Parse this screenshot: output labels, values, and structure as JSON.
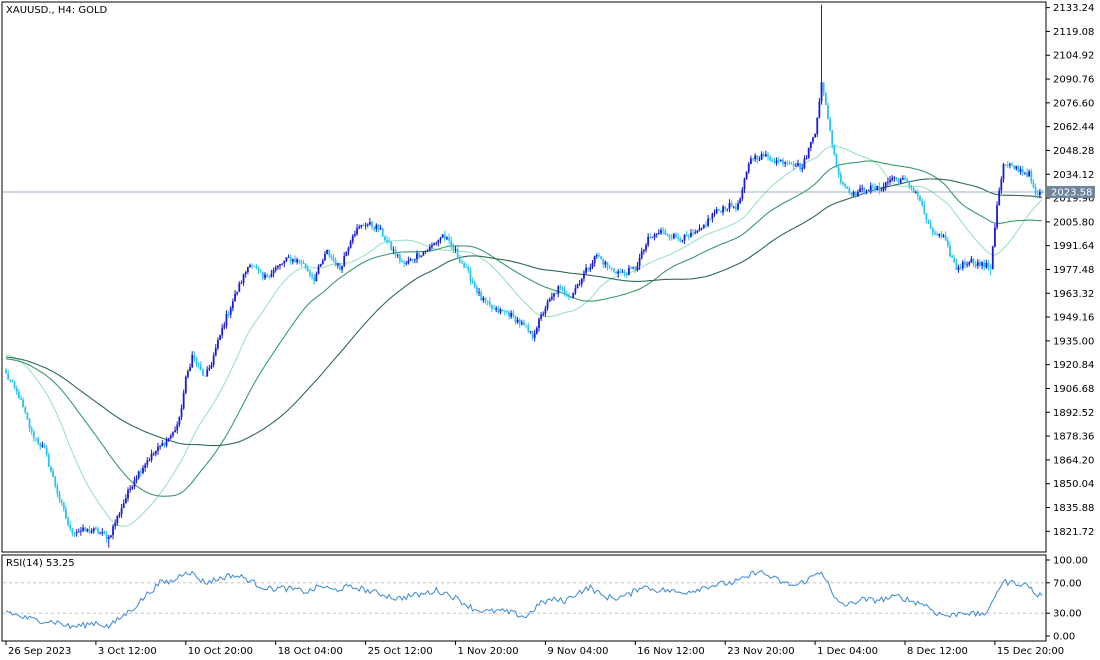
{
  "header": {
    "symbol_label": "XAUUSD., H4:  GOLD"
  },
  "rsi_panel": {
    "label": "RSI(14) 53.25"
  },
  "colors": {
    "bull": "#1a1ad6",
    "bear": "#27c3f5",
    "ma_fast": "#9be3c2",
    "ma_mid": "#3a9a6a",
    "ma_slow": "#2f6b4c",
    "rsi_line": "#3b88d8",
    "current_price_line": "#7e97b3",
    "current_price_box": "#6f859f"
  },
  "chart_data": [
    {
      "type": "candlestick",
      "title": "XAUUSD., H4:  GOLD",
      "ylim": [
        1810.0,
        2136.0
      ],
      "y_ticks": [
        "2133.24",
        "2119.08",
        "2104.92",
        "2090.76",
        "2076.60",
        "2062.44",
        "2048.28",
        "2034.12",
        "2019.96",
        "2005.80",
        "1991.64",
        "1977.48",
        "1963.32",
        "1949.16",
        "1935.00",
        "1920.84",
        "1906.68",
        "1892.52",
        "1878.36",
        "1864.20",
        "1850.04",
        "1835.88",
        "1821.72"
      ],
      "x_labels": [
        "26 Sep 2023",
        "3 Oct 12:00",
        "10 Oct 20:00",
        "18 Oct 04:00",
        "25 Oct 12:00",
        "1 Nov 20:00",
        "9 Nov 04:00",
        "16 Nov 12:00",
        "23 Nov 20:00",
        "1 Dec 04:00",
        "8 Dec 12:00",
        "15 Dec 20:00"
      ],
      "current_price": "2023.58",
      "keypoints": [
        [
          0,
          1915
        ],
        [
          6,
          1902
        ],
        [
          12,
          1880
        ],
        [
          18,
          1870
        ],
        [
          24,
          1845
        ],
        [
          30,
          1822
        ],
        [
          36,
          1822
        ],
        [
          42,
          1822
        ],
        [
          48,
          1818
        ],
        [
          54,
          1836
        ],
        [
          60,
          1853
        ],
        [
          66,
          1864
        ],
        [
          72,
          1872
        ],
        [
          78,
          1880
        ],
        [
          81,
          1888
        ],
        [
          84,
          1912
        ],
        [
          87,
          1926
        ],
        [
          93,
          1913
        ],
        [
          96,
          1922
        ],
        [
          102,
          1946
        ],
        [
          108,
          1965
        ],
        [
          114,
          1982
        ],
        [
          120,
          1972
        ],
        [
          126,
          1978
        ],
        [
          132,
          1984
        ],
        [
          138,
          1982
        ],
        [
          144,
          1972
        ],
        [
          150,
          1988
        ],
        [
          156,
          1978
        ],
        [
          162,
          1999
        ],
        [
          168,
          2005
        ],
        [
          174,
          2002
        ],
        [
          180,
          1990
        ],
        [
          186,
          1980
        ],
        [
          192,
          1986
        ],
        [
          198,
          1990
        ],
        [
          204,
          1998
        ],
        [
          210,
          1988
        ],
        [
          216,
          1975
        ],
        [
          222,
          1960
        ],
        [
          228,
          1953
        ],
        [
          234,
          1952
        ],
        [
          240,
          1946
        ],
        [
          246,
          1938
        ],
        [
          252,
          1955
        ],
        [
          258,
          1966
        ],
        [
          264,
          1962
        ],
        [
          270,
          1975
        ],
        [
          276,
          1986
        ],
        [
          282,
          1978
        ],
        [
          288,
          1975
        ],
        [
          294,
          1978
        ],
        [
          300,
          1995
        ],
        [
          306,
          2000
        ],
        [
          312,
          1997
        ],
        [
          318,
          1996
        ],
        [
          324,
          2000
        ],
        [
          330,
          2010
        ],
        [
          336,
          2015
        ],
        [
          342,
          2015
        ],
        [
          348,
          2044
        ],
        [
          354,
          2045
        ],
        [
          360,
          2042
        ],
        [
          366,
          2042
        ],
        [
          372,
          2038
        ],
        [
          378,
          2060
        ],
        [
          381,
          2088
        ],
        [
          384,
          2068
        ],
        [
          387,
          2045
        ],
        [
          390,
          2030
        ],
        [
          396,
          2022
        ],
        [
          402,
          2026
        ],
        [
          408,
          2025
        ],
        [
          414,
          2032
        ],
        [
          420,
          2030
        ],
        [
          426,
          2022
        ],
        [
          432,
          2000
        ],
        [
          438,
          1996
        ],
        [
          444,
          1978
        ],
        [
          450,
          1983
        ],
        [
          456,
          1980
        ],
        [
          460,
          1979
        ],
        [
          463,
          2016
        ],
        [
          466,
          2039
        ],
        [
          472,
          2038
        ],
        [
          478,
          2034
        ],
        [
          481,
          2021
        ],
        [
          484,
          2023.58
        ]
      ]
    },
    {
      "type": "line",
      "title": "RSI(14)",
      "ylim": [
        0,
        100
      ],
      "y_ticks": [
        "100.00",
        "70.00",
        "30.00",
        "0.00"
      ],
      "levels": [
        70,
        30
      ],
      "keypoints": [
        [
          0,
          33
        ],
        [
          6,
          26
        ],
        [
          12,
          22
        ],
        [
          18,
          20
        ],
        [
          24,
          18
        ],
        [
          30,
          12
        ],
        [
          36,
          14
        ],
        [
          42,
          18
        ],
        [
          48,
          12
        ],
        [
          54,
          25
        ],
        [
          60,
          38
        ],
        [
          66,
          55
        ],
        [
          72,
          70
        ],
        [
          78,
          72
        ],
        [
          81,
          79
        ],
        [
          84,
          86
        ],
        [
          87,
          82
        ],
        [
          93,
          70
        ],
        [
          99,
          75
        ],
        [
          105,
          80
        ],
        [
          111,
          77
        ],
        [
          117,
          68
        ],
        [
          123,
          62
        ],
        [
          129,
          63
        ],
        [
          135,
          61
        ],
        [
          141,
          58
        ],
        [
          147,
          66
        ],
        [
          153,
          60
        ],
        [
          159,
          64
        ],
        [
          165,
          63
        ],
        [
          171,
          58
        ],
        [
          177,
          54
        ],
        [
          183,
          49
        ],
        [
          189,
          53
        ],
        [
          195,
          55
        ],
        [
          201,
          60
        ],
        [
          207,
          55
        ],
        [
          213,
          45
        ],
        [
          219,
          35
        ],
        [
          225,
          32
        ],
        [
          231,
          33
        ],
        [
          237,
          30
        ],
        [
          243,
          25
        ],
        [
          249,
          42
        ],
        [
          255,
          48
        ],
        [
          261,
          46
        ],
        [
          267,
          57
        ],
        [
          273,
          64
        ],
        [
          279,
          52
        ],
        [
          285,
          50
        ],
        [
          291,
          54
        ],
        [
          297,
          66
        ],
        [
          303,
          61
        ],
        [
          309,
          60
        ],
        [
          315,
          57
        ],
        [
          321,
          60
        ],
        [
          327,
          65
        ],
        [
          333,
          68
        ],
        [
          339,
          70
        ],
        [
          345,
          75
        ],
        [
          351,
          86
        ],
        [
          357,
          78
        ],
        [
          363,
          70
        ],
        [
          369,
          66
        ],
        [
          375,
          75
        ],
        [
          381,
          86
        ],
        [
          384,
          69
        ],
        [
          387,
          48
        ],
        [
          393,
          40
        ],
        [
          399,
          48
        ],
        [
          405,
          47
        ],
        [
          411,
          49
        ],
        [
          417,
          52
        ],
        [
          423,
          46
        ],
        [
          429,
          42
        ],
        [
          435,
          30
        ],
        [
          441,
          26
        ],
        [
          447,
          32
        ],
        [
          453,
          28
        ],
        [
          459,
          31
        ],
        [
          463,
          60
        ],
        [
          466,
          71
        ],
        [
          472,
          70
        ],
        [
          478,
          66
        ],
        [
          481,
          54
        ],
        [
          484,
          53.25
        ]
      ]
    }
  ]
}
